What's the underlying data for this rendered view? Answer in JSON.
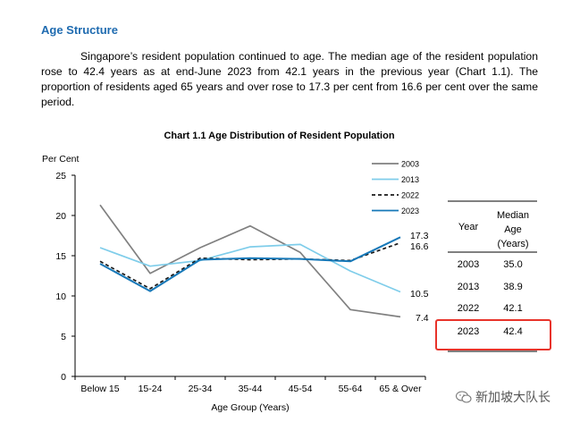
{
  "section": {
    "title": "Age Structure",
    "paragraph": "Singapore’s resident population continued to age. The median age of the resident population rose to 42.4 years as at end-June 2023 from 42.1 years in the previous year (Chart 1.1). The proportion of residents aged 65 years and over rose to 17.3 per cent from 16.6 per cent over the same period."
  },
  "chart_data": {
    "type": "line",
    "title": "Chart 1.1  Age Distribution of Resident Population",
    "ylabel": "Per Cent",
    "xlabel": "Age Group (Years)",
    "ylim": [
      0,
      25
    ],
    "yticks": [
      "0",
      "5",
      "10",
      "15",
      "20",
      "25"
    ],
    "categories": [
      "Below 15",
      "15-24",
      "25-34",
      "35-44",
      "45-54",
      "55-64",
      "65 & Over"
    ],
    "legend_position": "top-right",
    "series": [
      {
        "name": "2003",
        "color": "#808080",
        "dash": "solid",
        "values": [
          21.3,
          12.8,
          16.0,
          18.7,
          15.4,
          8.3,
          7.4
        ],
        "end_label": "7.4"
      },
      {
        "name": "2013",
        "color": "#7fcdea",
        "dash": "solid",
        "values": [
          16.0,
          13.7,
          14.4,
          16.1,
          16.4,
          13.1,
          10.5
        ],
        "end_label": "10.5"
      },
      {
        "name": "2022",
        "color": "#1a1a1a",
        "dash": "dashed",
        "values": [
          14.3,
          10.9,
          14.7,
          14.5,
          14.6,
          14.4,
          16.6
        ],
        "end_label": "16.6"
      },
      {
        "name": "2023",
        "color": "#1678b8",
        "dash": "solid",
        "values": [
          14.0,
          10.6,
          14.5,
          14.7,
          14.6,
          14.3,
          17.3
        ],
        "end_label": "17.3"
      }
    ]
  },
  "table": {
    "header_year": "Year",
    "header_median": [
      "Median",
      "Age",
      "(Years)"
    ],
    "rows": [
      {
        "year": "2003",
        "age": "35.0"
      },
      {
        "year": "2013",
        "age": "38.9"
      },
      {
        "year": "2022",
        "age": "42.1"
      },
      {
        "year": "2023",
        "age": "42.4",
        "highlighted": true
      }
    ],
    "highlight_color": "#e8332a"
  },
  "watermark": {
    "text": "新加坡大队长",
    "icon": "wechat-icon"
  }
}
